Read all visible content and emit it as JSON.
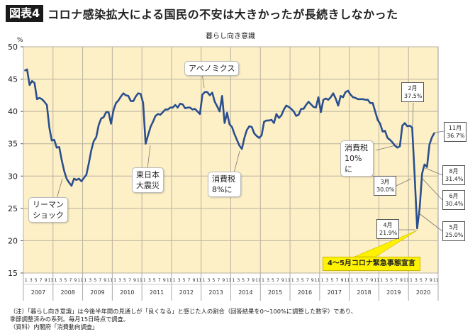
{
  "figure_label": "図表4",
  "headline": "コロナ感染拡大による国民の不安は大きかったが長続きしなかった",
  "notes": [
    "（注）「暮らし向き意識」は今後半年間の見通しが「良くなる」と感じた人の割合（回答結果を0〜100%に調整した数字）であり、",
    "季節調整済みの系列。毎月15日時点で調査。",
    "（資料）内閣府「消費動向調査」"
  ],
  "colors": {
    "line": "#2b4f8e",
    "plot_bg": "#fdf0c6",
    "grid": "#b9b2a0",
    "banner": "#fff200"
  },
  "chart_data": {
    "type": "line",
    "title": "暮らし向き意識",
    "ylabel": "%",
    "ylim": [
      15,
      50
    ],
    "yticks": [
      15,
      20,
      25,
      30,
      35,
      40,
      45,
      50
    ],
    "grid": true,
    "month_tick_labels": [
      "1",
      "3",
      "5",
      "7",
      "9",
      "11"
    ],
    "years": [
      "2007",
      "2008",
      "2009",
      "2010",
      "2011",
      "2012",
      "2013",
      "2014",
      "2015",
      "2016",
      "2017",
      "2018",
      "2019",
      "2020"
    ],
    "x_start": "2007-01",
    "x_end": "2020-11",
    "series": [
      {
        "values": [
          46.3,
          46.5,
          44.1,
          44.7,
          44.4,
          41.9,
          42.1,
          41.9,
          41.5,
          41.0,
          37.5,
          35.5,
          35.6,
          34.4,
          34.5,
          32.5,
          30.8,
          29.6,
          29.0,
          28.5,
          29.6,
          29.4,
          29.6,
          29.2,
          29.7,
          30.2,
          32.0,
          34.0,
          35.4,
          36.0,
          37.9,
          38.9,
          39.1,
          39.9,
          39.9,
          38.1,
          40.2,
          41.3,
          41.7,
          42.3,
          42.8,
          42.5,
          42.4,
          41.6,
          41.6,
          42.3,
          42.8,
          42.7,
          41.3,
          35.0,
          36.3,
          37.6,
          38.4,
          39.3,
          39.6,
          39.5,
          39.9,
          40.3,
          40.3,
          40.6,
          40.6,
          41.0,
          40.6,
          41.2,
          41.1,
          40.5,
          40.6,
          40.6,
          40.3,
          40.4,
          40.0,
          39.6,
          42.6,
          43.0,
          43.0,
          42.5,
          42.9,
          41.5,
          40.8,
          40.0,
          42.4,
          38.2,
          39.8,
          38.0,
          37.6,
          36.5,
          35.6,
          34.7,
          34.2,
          35.9,
          37.1,
          37.7,
          37.6,
          36.6,
          36.2,
          35.9,
          36.3,
          38.4,
          38.6,
          38.6,
          38.7,
          38.2,
          39.6,
          39.0,
          39.4,
          40.3,
          40.9,
          40.7,
          40.4,
          40.0,
          39.3,
          39.5,
          40.4,
          40.4,
          41.0,
          41.5,
          41.1,
          40.7,
          40.6,
          42.2,
          39.9,
          41.8,
          42.0,
          41.8,
          42.2,
          42.8,
          42.0,
          40.9,
          42.4,
          42.2,
          43.0,
          43.2,
          42.6,
          42.2,
          42.1,
          41.9,
          41.9,
          41.9,
          41.8,
          41.8,
          41.3,
          41.3,
          40.0,
          38.7,
          38.1,
          36.9,
          37.0,
          35.9,
          35.6,
          35.2,
          34.7,
          34.4,
          34.6,
          37.8,
          38.2,
          37.7,
          37.8,
          37.5,
          30.0,
          21.9,
          25.0,
          30.4,
          31.8,
          31.4,
          34.9,
          36.0,
          36.7
        ]
      }
    ],
    "annotations": [
      {
        "text": "リーマンショック",
        "lines": [
          "リーマン",
          "ショック"
        ]
      },
      {
        "text": "東日本大震災",
        "lines": [
          "東日本",
          "大震災"
        ]
      },
      {
        "text": "アベノミクス",
        "lines": [
          "アベノミクス"
        ]
      },
      {
        "text": "消費税8%に",
        "lines": [
          "消費税",
          "8%に"
        ]
      },
      {
        "text": "消費税10%に",
        "lines": [
          "消費税",
          "10%に"
        ]
      },
      {
        "text": "4〜5月コロナ緊急事態宣言",
        "lines": [
          "4〜5月コロナ緊急事態宣言"
        ]
      }
    ],
    "value_labels": [
      {
        "month": "2月",
        "value": "37.5%"
      },
      {
        "month": "3月",
        "value": "30.0%"
      },
      {
        "month": "4月",
        "value": "21.9%"
      },
      {
        "month": "5月",
        "value": "25.0%"
      },
      {
        "month": "6月",
        "value": "30.4%"
      },
      {
        "month": "8月",
        "value": "31.4%"
      },
      {
        "month": "11月",
        "value": "36.7%"
      }
    ]
  }
}
